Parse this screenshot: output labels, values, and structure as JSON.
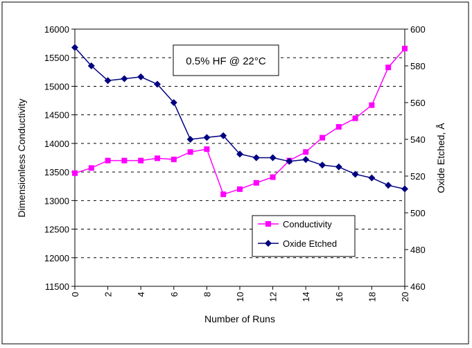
{
  "chart_data": {
    "type": "line",
    "annotation": "0.5% HF @ 22°C",
    "xlabel": "Number of Runs",
    "ylabel_left": "Dimensionless Conductivity",
    "ylabel_right": "Oxide Etched, Å",
    "xlim": [
      0,
      20
    ],
    "ylim_left": [
      11500,
      16000
    ],
    "ylim_right": [
      460,
      600
    ],
    "x_ticks": [
      0,
      2,
      4,
      6,
      8,
      10,
      12,
      14,
      16,
      18,
      20
    ],
    "y_left_ticks": [
      11500,
      12000,
      12500,
      13000,
      13500,
      14000,
      14500,
      15000,
      15500,
      16000
    ],
    "y_right_ticks": [
      460,
      480,
      500,
      520,
      540,
      560,
      580,
      600
    ],
    "grid": true,
    "legend_position": "lower-right",
    "series": [
      {
        "name": "Conductivity",
        "axis": "left",
        "color": "#ff00ff",
        "marker": "square",
        "x": [
          0,
          1,
          2,
          3,
          4,
          5,
          6,
          7,
          8,
          9,
          10,
          11,
          12,
          13,
          14,
          15,
          16,
          17,
          18,
          19,
          20
        ],
        "values": [
          13480,
          13570,
          13700,
          13700,
          13700,
          13740,
          13720,
          13850,
          13900,
          13110,
          13200,
          13310,
          13410,
          13700,
          13850,
          14100,
          14290,
          14440,
          14670,
          15330,
          15660
        ]
      },
      {
        "name": "Oxide Etched",
        "axis": "right",
        "color": "#000080",
        "marker": "diamond",
        "x": [
          0,
          1,
          2,
          3,
          4,
          5,
          6,
          7,
          8,
          9,
          10,
          11,
          12,
          13,
          14,
          15,
          16,
          17,
          18,
          19,
          20
        ],
        "values": [
          590,
          580,
          572,
          573,
          574,
          570,
          560,
          540,
          541,
          542,
          532,
          530,
          530,
          528,
          529,
          526,
          525,
          521,
          519,
          515,
          513
        ]
      }
    ]
  }
}
